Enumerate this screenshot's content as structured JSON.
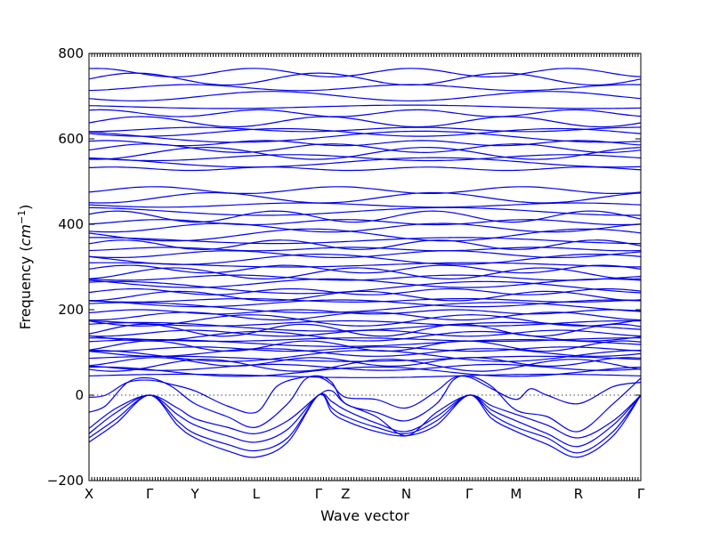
{
  "chart_data": {
    "type": "line",
    "title": "",
    "xlabel": "Wave vector",
    "ylabel_parts": {
      "main": "Frequency (",
      "unit": "cm",
      "sup": "−1",
      "close": ")"
    },
    "ylim": [
      -200,
      800
    ],
    "yticks": [
      -200,
      0,
      200,
      400,
      600,
      800
    ],
    "ytick_labels": [
      "−200",
      "0",
      "200",
      "400",
      "600",
      "800"
    ],
    "xticks": [
      {
        "label": "X",
        "x": 0.0
      },
      {
        "label": "Γ",
        "x": 0.11
      },
      {
        "label": "Y",
        "x": 0.192
      },
      {
        "label": "L",
        "x": 0.303
      },
      {
        "label": "Γ",
        "x": 0.416
      },
      {
        "label": "Z",
        "x": 0.465
      },
      {
        "label": "N",
        "x": 0.575
      },
      {
        "label": "Γ",
        "x": 0.689
      },
      {
        "label": "M",
        "x": 0.774
      },
      {
        "label": "R",
        "x": 0.887
      },
      {
        "label": "Γ",
        "x": 1.0
      }
    ],
    "zero_line": true,
    "line_color": "#0000ee",
    "acoustic_bands": [
      {
        "x": [
          0.0,
          0.05,
          0.11,
          0.16,
          0.192,
          0.25,
          0.303,
          0.36,
          0.416,
          0.44,
          0.465,
          0.52,
          0.575,
          0.63,
          0.689,
          0.73,
          0.774,
          0.83,
          0.887,
          0.95,
          1.0
        ],
        "y": [
          -110,
          -65,
          0,
          -70,
          -100,
          -130,
          -145,
          -110,
          0,
          -40,
          -60,
          -85,
          -95,
          -70,
          0,
          -55,
          -85,
          -115,
          -145,
          -95,
          0
        ]
      },
      {
        "x": [
          0.0,
          0.05,
          0.11,
          0.16,
          0.192,
          0.25,
          0.303,
          0.36,
          0.416,
          0.44,
          0.465,
          0.52,
          0.575,
          0.63,
          0.689,
          0.73,
          0.774,
          0.83,
          0.887,
          0.95,
          1.0
        ],
        "y": [
          -100,
          -55,
          0,
          -60,
          -90,
          -115,
          -130,
          -100,
          0,
          -30,
          -50,
          -75,
          -90,
          -60,
          0,
          -45,
          -75,
          -100,
          -135,
          -85,
          0
        ]
      },
      {
        "x": [
          0.0,
          0.05,
          0.11,
          0.16,
          0.192,
          0.25,
          0.303,
          0.36,
          0.416,
          0.44,
          0.465,
          0.52,
          0.575,
          0.63,
          0.689,
          0.73,
          0.774,
          0.83,
          0.887,
          0.95,
          1.0
        ],
        "y": [
          -90,
          -40,
          0,
          -45,
          -70,
          -95,
          -110,
          -80,
          0,
          -15,
          -35,
          -65,
          -85,
          -50,
          0,
          -35,
          -60,
          -90,
          -120,
          -70,
          0
        ]
      },
      {
        "x": [
          0.0,
          0.05,
          0.11,
          0.16,
          0.192,
          0.25,
          0.303,
          0.36,
          0.416,
          0.44,
          0.465,
          0.52,
          0.575,
          0.63,
          0.689,
          0.73,
          0.774,
          0.83,
          0.887,
          0.95,
          1.0
        ],
        "y": [
          -78,
          -30,
          0,
          -30,
          -55,
          -75,
          -90,
          -60,
          0,
          10,
          -20,
          -50,
          -95,
          -40,
          0,
          -25,
          -45,
          -70,
          -100,
          -60,
          0
        ]
      },
      {
        "x": [
          0.0,
          0.03,
          0.07,
          0.11,
          0.15,
          0.192,
          0.25,
          0.303,
          0.36,
          0.39,
          0.416,
          0.44,
          0.465,
          0.52,
          0.575,
          0.63,
          0.66,
          0.689,
          0.73,
          0.774,
          0.83,
          0.887,
          0.95,
          1.0
        ],
        "y": [
          -40,
          -25,
          30,
          40,
          20,
          -20,
          -50,
          -75,
          -20,
          35,
          45,
          30,
          -20,
          -40,
          -60,
          -20,
          35,
          45,
          20,
          -35,
          -50,
          -85,
          -20,
          40
        ]
      },
      {
        "x": [
          0.0,
          0.03,
          0.07,
          0.11,
          0.15,
          0.192,
          0.25,
          0.303,
          0.34,
          0.38,
          0.416,
          0.44,
          0.465,
          0.52,
          0.575,
          0.63,
          0.66,
          0.689,
          0.73,
          0.774,
          0.8,
          0.83,
          0.887,
          0.95,
          1.0
        ],
        "y": [
          -5,
          0,
          30,
          35,
          25,
          10,
          -25,
          -40,
          20,
          40,
          42,
          25,
          -5,
          -10,
          -30,
          10,
          40,
          42,
          15,
          -10,
          15,
          0,
          -20,
          20,
          30
        ]
      }
    ],
    "optical_band_levels": [
      45,
      55,
      65,
      70,
      78,
      85,
      92,
      100,
      108,
      115,
      122,
      130,
      138,
      145,
      152,
      160,
      168,
      175,
      185,
      195,
      205,
      215,
      222,
      232,
      242,
      252,
      262,
      275,
      285,
      295,
      305,
      318,
      330,
      342,
      352,
      362,
      375,
      392,
      405,
      418,
      430,
      445,
      462,
      480,
      530,
      545,
      556,
      566,
      578,
      590,
      605,
      615,
      622,
      640,
      660,
      675,
      700,
      720,
      740,
      755
    ]
  }
}
